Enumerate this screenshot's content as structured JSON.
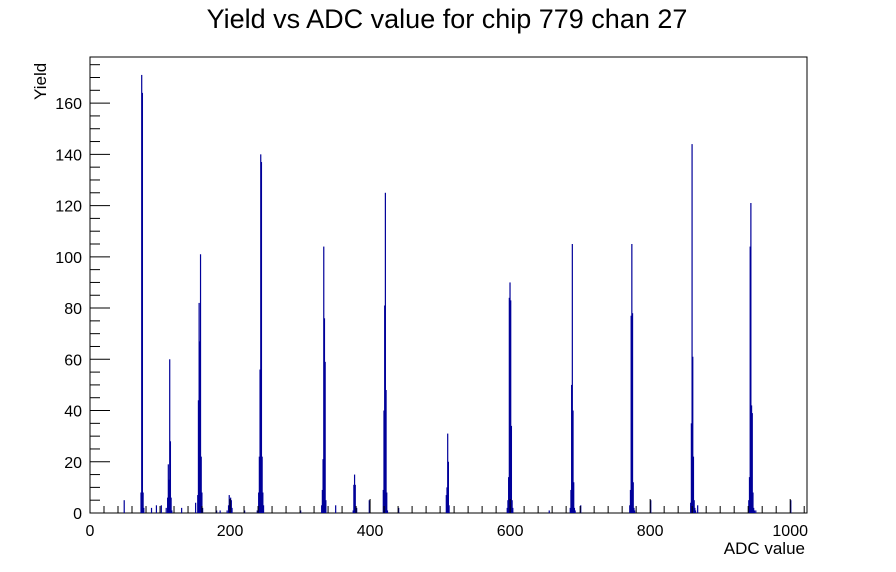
{
  "chart_data": {
    "type": "bar",
    "title": "Yield vs ADC value for chip 779 chan 27",
    "xlabel": "ADC value",
    "ylabel": "Yield",
    "xlim": [
      0,
      1024
    ],
    "ylim": [
      0,
      178
    ],
    "x_major_ticks": [
      0,
      200,
      400,
      600,
      800,
      1000
    ],
    "y_major_ticks": [
      0,
      20,
      40,
      60,
      80,
      100,
      120,
      140,
      160
    ],
    "grid": false,
    "legend": "none",
    "color": "#000099",
    "x": [
      48,
      72,
      73,
      74,
      75,
      76,
      87,
      94,
      101,
      108,
      110,
      111,
      112,
      113,
      114,
      115,
      116,
      130,
      150,
      153,
      154,
      155,
      156,
      157,
      158,
      159,
      160,
      180,
      185,
      195,
      197,
      198,
      199,
      200,
      201,
      202,
      220,
      238,
      240,
      241,
      242,
      243,
      244,
      245,
      246,
      247,
      300,
      330,
      331,
      332,
      333,
      334,
      335,
      336,
      350,
      375,
      376,
      377,
      378,
      380,
      398,
      418,
      419,
      420,
      421,
      422,
      423,
      424,
      440,
      508,
      509,
      510,
      511,
      512,
      595,
      596,
      597,
      598,
      599,
      600,
      601,
      602,
      603,
      655,
      685,
      686,
      687,
      688,
      689,
      690,
      691,
      692,
      700,
      770,
      771,
      772,
      773,
      774,
      775,
      776,
      777,
      800,
      857,
      858,
      859,
      860,
      861,
      862,
      863,
      864,
      867,
      940,
      941,
      942,
      943,
      944,
      945,
      946,
      947,
      948,
      950,
      1000
    ],
    "values": [
      5,
      8,
      171,
      164,
      8,
      2,
      2,
      3,
      3,
      2,
      6,
      19,
      13,
      60,
      28,
      6,
      1,
      2,
      4,
      7,
      44,
      82,
      67,
      101,
      22,
      8,
      2,
      1,
      1,
      1,
      3,
      7,
      3,
      6,
      5,
      2,
      1,
      1,
      8,
      22,
      56,
      140,
      137,
      22,
      8,
      3,
      1,
      3,
      9,
      21,
      104,
      76,
      59,
      5,
      3,
      1,
      11,
      15,
      11,
      2,
      5,
      9,
      40,
      81,
      125,
      48,
      8,
      1,
      2,
      7,
      10,
      31,
      20,
      3,
      2,
      5,
      14,
      84,
      90,
      83,
      34,
      5,
      2,
      1,
      2,
      9,
      50,
      105,
      40,
      12,
      2,
      1,
      3,
      3,
      9,
      77,
      105,
      78,
      12,
      2,
      1,
      5,
      4,
      35,
      144,
      61,
      22,
      5,
      2,
      1,
      3,
      5,
      14,
      104,
      121,
      42,
      39,
      8,
      2,
      1,
      1,
      5
    ]
  }
}
